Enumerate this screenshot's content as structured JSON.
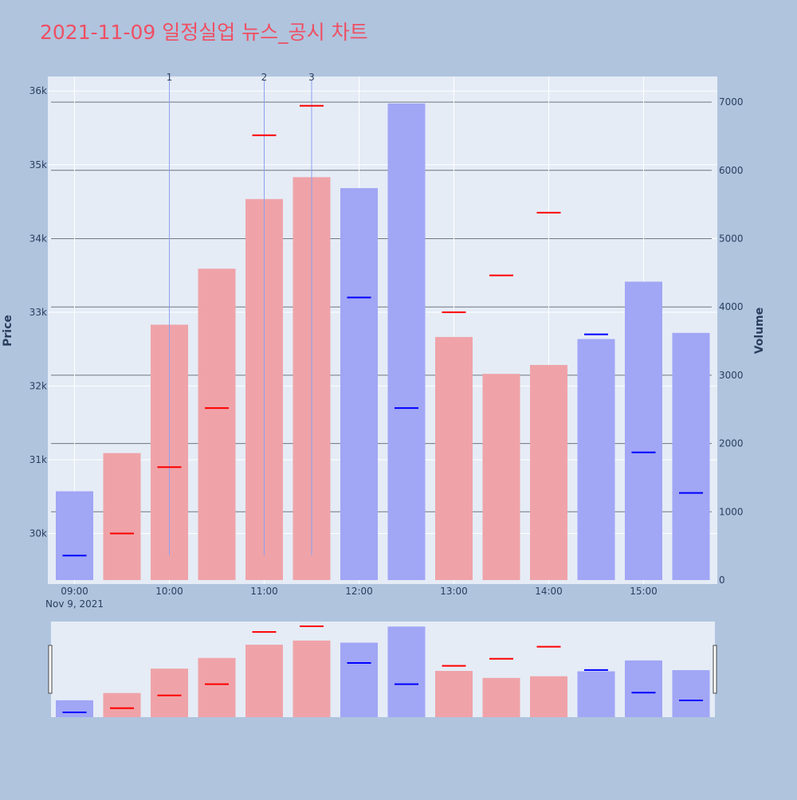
{
  "chart_data": {
    "type": "bar",
    "title": "2021-11-09 일정실업 뉴스_공시 차트",
    "ylabel": "Price",
    "y2label": "Volume",
    "x": [
      "09:00",
      "09:30",
      "10:00",
      "10:30",
      "11:00",
      "11:30",
      "12:00",
      "12:30",
      "13:00",
      "13:30",
      "14:00",
      "14:30",
      "15:00",
      "15:30"
    ],
    "x_ticks": [
      "09:00",
      "10:00",
      "11:00",
      "12:00",
      "13:00",
      "14:00",
      "15:00"
    ],
    "x_date_label": "Nov 9, 2021",
    "y_ticks": [
      "30k",
      "31k",
      "32k",
      "33k",
      "34k",
      "35k",
      "36k"
    ],
    "y_tick_values": [
      30000,
      31000,
      32000,
      33000,
      34000,
      35000,
      36000
    ],
    "y2_ticks": [
      "0",
      "1000",
      "2000",
      "3000",
      "4000",
      "5000",
      "6000",
      "7000"
    ],
    "y2_tick_values": [
      0,
      1000,
      2000,
      3000,
      4000,
      5000,
      6000,
      7000
    ],
    "ylim": [
      29350,
      36200
    ],
    "y2lim": [
      0,
      7400
    ],
    "series": [
      {
        "values": [
          1300,
          1860,
          3740,
          4560,
          5580,
          5900,
          5740,
          6980,
          3560,
          3020,
          3150,
          3530,
          4370,
          3620
        ]
      },
      {
        "values": [
          29700,
          30000,
          30900,
          31700,
          35400,
          35800,
          33200,
          31700,
          33000,
          33500,
          34350,
          32700,
          31100,
          30550
        ]
      }
    ],
    "bar_colors": [
      "blue",
      "red",
      "red",
      "red",
      "red",
      "red",
      "blue",
      "blue",
      "red",
      "red",
      "red",
      "blue",
      "blue",
      "blue"
    ],
    "news_markers": [
      {
        "label": "1",
        "x": "10:00"
      },
      {
        "label": "2",
        "x": "11:00"
      },
      {
        "label": "3",
        "x": "11:30"
      }
    ],
    "colors": {
      "background": "#b0c4de",
      "plot_background": "#e5ecf6",
      "title": "#ef4f63",
      "up_bar": "#efa3a8",
      "down_bar": "#a1a6f5",
      "up_tick": "#ff0000",
      "down_tick": "#0000ff",
      "marker_line": "#8ea0f0",
      "axis_text": "#2a3f5f"
    },
    "grid": true,
    "rangeslider": true
  }
}
